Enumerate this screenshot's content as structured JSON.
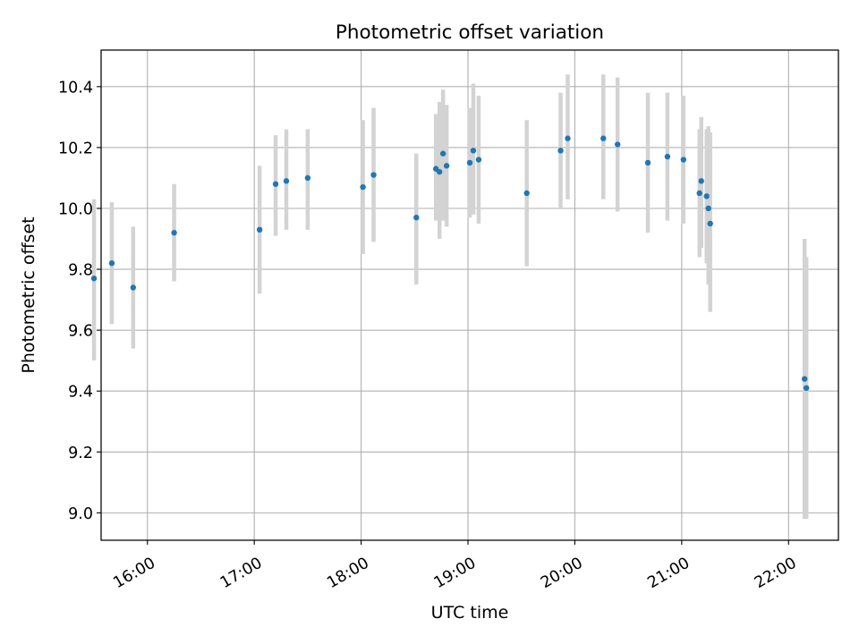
{
  "chart_data": {
    "type": "scatter",
    "title": "Photometric offset variation",
    "xlabel": "UTC time",
    "ylabel": "Photometric offset",
    "x_is_time": true,
    "xlim": [
      "15:34",
      "22:28"
    ],
    "ylim": [
      8.91,
      10.52
    ],
    "x_ticks": [
      "16:00",
      "17:00",
      "18:00",
      "19:00",
      "20:00",
      "21:00",
      "22:00"
    ],
    "y_ticks": [
      9.0,
      9.2,
      9.4,
      9.6,
      9.8,
      10.0,
      10.2,
      10.4
    ],
    "y_tick_labels": [
      "9.0",
      "9.2",
      "9.4",
      "9.6",
      "9.8",
      "10.0",
      "10.2",
      "10.4"
    ],
    "grid": true,
    "colors": {
      "point": "#1f77b4",
      "errorbar": "#d3d3d3",
      "grid": "#b0b0b0"
    },
    "points": [
      {
        "x": "15:30",
        "y": 9.77,
        "ylo": 9.5,
        "yhi": 10.03
      },
      {
        "x": "15:40",
        "y": 9.82,
        "ylo": 9.62,
        "yhi": 10.02
      },
      {
        "x": "15:52",
        "y": 9.74,
        "ylo": 9.54,
        "yhi": 9.94
      },
      {
        "x": "16:15",
        "y": 9.92,
        "ylo": 9.76,
        "yhi": 10.08
      },
      {
        "x": "17:03",
        "y": 9.93,
        "ylo": 9.72,
        "yhi": 10.14
      },
      {
        "x": "17:12",
        "y": 10.08,
        "ylo": 9.91,
        "yhi": 10.24
      },
      {
        "x": "17:18",
        "y": 10.09,
        "ylo": 9.93,
        "yhi": 10.26
      },
      {
        "x": "17:30",
        "y": 10.1,
        "ylo": 9.93,
        "yhi": 10.26
      },
      {
        "x": "18:01",
        "y": 10.07,
        "ylo": 9.85,
        "yhi": 10.29
      },
      {
        "x": "18:07",
        "y": 10.11,
        "ylo": 9.89,
        "yhi": 10.33
      },
      {
        "x": "18:31",
        "y": 9.97,
        "ylo": 9.75,
        "yhi": 10.18
      },
      {
        "x": "18:42",
        "y": 10.13,
        "ylo": 9.96,
        "yhi": 10.31
      },
      {
        "x": "18:44",
        "y": 10.12,
        "ylo": 9.9,
        "yhi": 10.35
      },
      {
        "x": "18:46",
        "y": 10.18,
        "ylo": 9.96,
        "yhi": 10.39
      },
      {
        "x": "18:48",
        "y": 10.14,
        "ylo": 9.94,
        "yhi": 10.34
      },
      {
        "x": "19:01",
        "y": 10.15,
        "ylo": 9.97,
        "yhi": 10.33
      },
      {
        "x": "19:03",
        "y": 10.19,
        "ylo": 9.98,
        "yhi": 10.41
      },
      {
        "x": "19:06",
        "y": 10.16,
        "ylo": 9.95,
        "yhi": 10.37
      },
      {
        "x": "19:33",
        "y": 10.05,
        "ylo": 9.81,
        "yhi": 10.29
      },
      {
        "x": "19:52",
        "y": 10.19,
        "ylo": 10.0,
        "yhi": 10.38
      },
      {
        "x": "19:56",
        "y": 10.23,
        "ylo": 10.03,
        "yhi": 10.44
      },
      {
        "x": "20:16",
        "y": 10.23,
        "ylo": 10.03,
        "yhi": 10.44
      },
      {
        "x": "20:24",
        "y": 10.21,
        "ylo": 9.99,
        "yhi": 10.43
      },
      {
        "x": "20:41",
        "y": 10.15,
        "ylo": 9.92,
        "yhi": 10.38
      },
      {
        "x": "20:52",
        "y": 10.17,
        "ylo": 9.96,
        "yhi": 10.38
      },
      {
        "x": "21:01",
        "y": 10.16,
        "ylo": 9.95,
        "yhi": 10.37
      },
      {
        "x": "21:10",
        "y": 10.05,
        "ylo": 9.84,
        "yhi": 10.26
      },
      {
        "x": "21:11",
        "y": 10.09,
        "ylo": 9.87,
        "yhi": 10.3
      },
      {
        "x": "21:14",
        "y": 10.04,
        "ylo": 9.82,
        "yhi": 10.26
      },
      {
        "x": "21:15",
        "y": 10.0,
        "ylo": 9.75,
        "yhi": 10.27
      },
      {
        "x": "21:16",
        "y": 9.95,
        "ylo": 9.66,
        "yhi": 10.25
      },
      {
        "x": "22:09",
        "y": 9.44,
        "ylo": 8.98,
        "yhi": 9.9
      },
      {
        "x": "22:10",
        "y": 9.41,
        "ylo": 8.98,
        "yhi": 9.84
      }
    ]
  }
}
